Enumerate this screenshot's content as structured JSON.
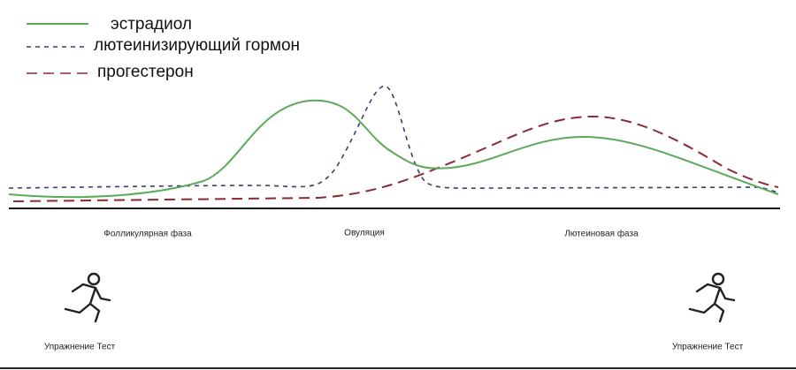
{
  "legend": {
    "items": [
      {
        "label": "эстрадиол"
      },
      {
        "label": "лютеинизирующий гормон"
      },
      {
        "label": "прогестерон"
      }
    ]
  },
  "phases": [
    "Фолликулярная фаза",
    "Овуляция",
    "Лютеиновая фаза"
  ],
  "exercises": [
    {
      "label": "Упражнение Тест"
    },
    {
      "label": "Упражнение Тест"
    }
  ]
}
